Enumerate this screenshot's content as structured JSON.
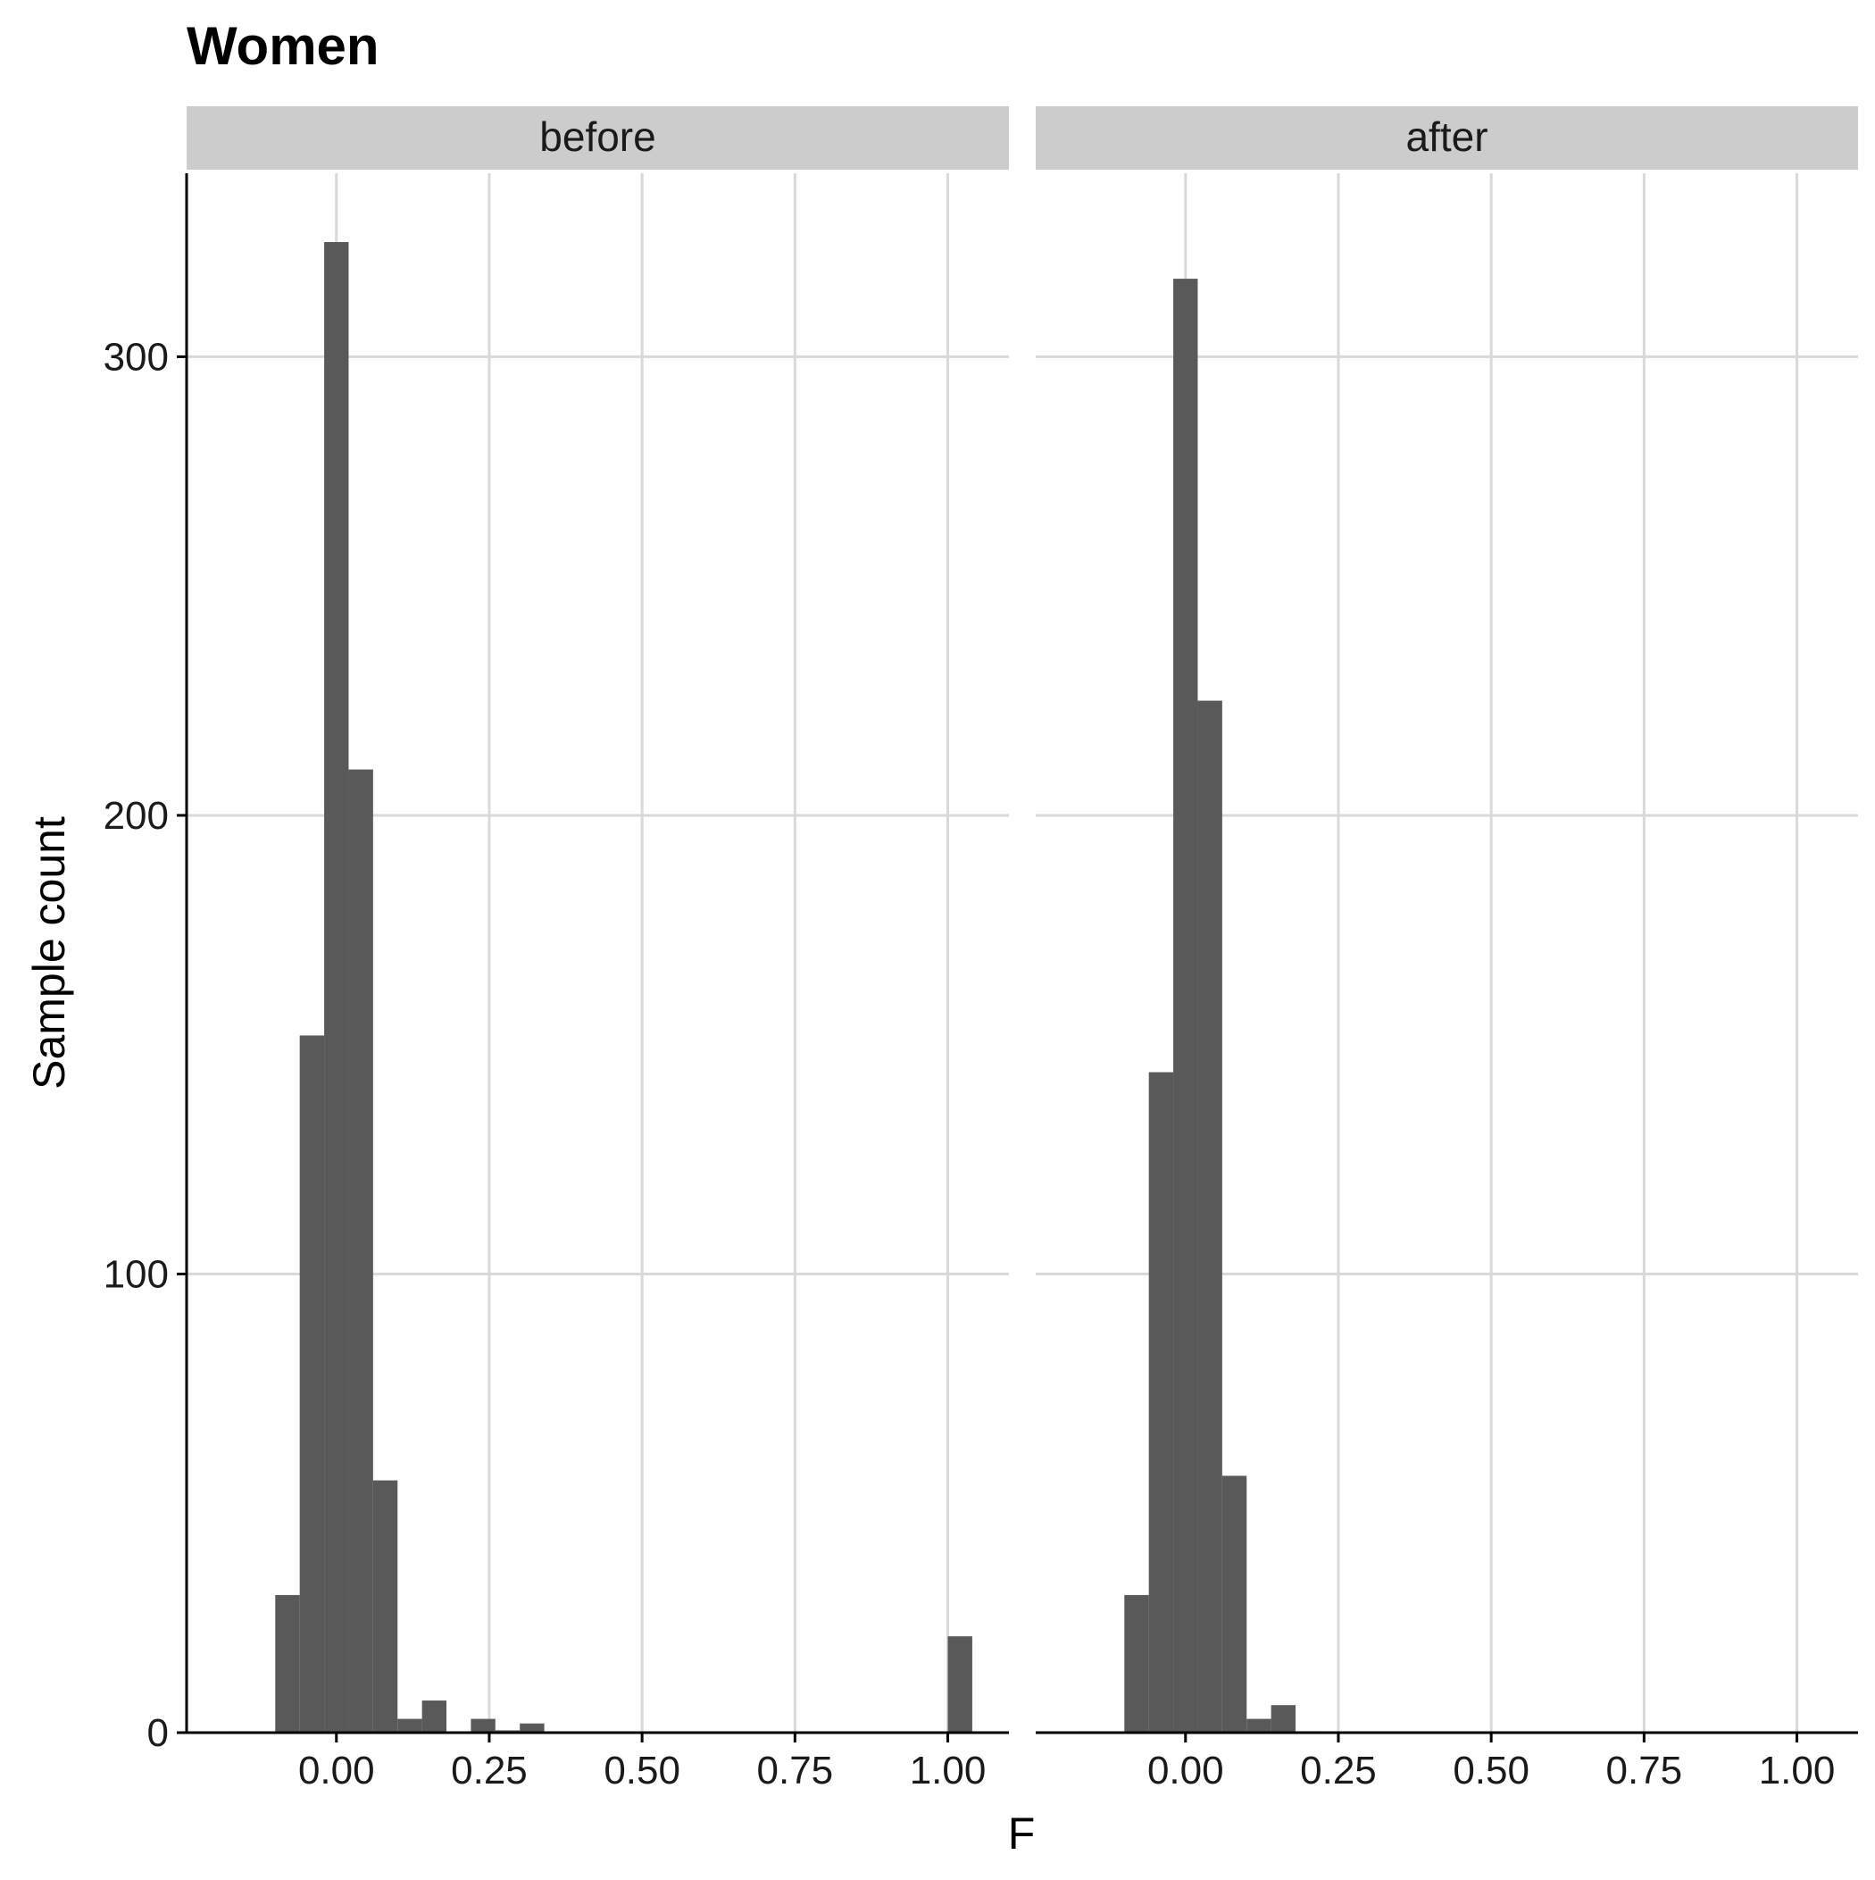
{
  "chart_data": {
    "type": "bar",
    "title": "Women",
    "xlabel": "F",
    "ylabel": "Sample count",
    "xlim": [
      -0.245,
      1.1
    ],
    "ylim": [
      0,
      340
    ],
    "xticks": [
      0.0,
      0.25,
      0.5,
      0.75,
      1.0
    ],
    "xtick_labels": [
      "0.00",
      "0.25",
      "0.50",
      "0.75",
      "1.00"
    ],
    "yticks": [
      0,
      100,
      200,
      300
    ],
    "ytick_labels": [
      "0",
      "100",
      "200",
      "300"
    ],
    "grid": true,
    "bar_color": "#595959",
    "grid_color": "#d9d9d9",
    "strip_color": "#cccccc",
    "bin_width": 0.04,
    "panels": [
      {
        "label": "before",
        "bins": [
          {
            "x0": -0.18,
            "x1": -0.14,
            "count": 0.3
          },
          {
            "x0": -0.1,
            "x1": -0.06,
            "count": 30
          },
          {
            "x0": -0.06,
            "x1": -0.02,
            "count": 152
          },
          {
            "x0": -0.02,
            "x1": 0.02,
            "count": 325
          },
          {
            "x0": 0.02,
            "x1": 0.06,
            "count": 210
          },
          {
            "x0": 0.06,
            "x1": 0.1,
            "count": 55
          },
          {
            "x0": 0.1,
            "x1": 0.14,
            "count": 3
          },
          {
            "x0": 0.14,
            "x1": 0.18,
            "count": 7
          },
          {
            "x0": 0.22,
            "x1": 0.26,
            "count": 3
          },
          {
            "x0": 0.26,
            "x1": 0.3,
            "count": 0.5
          },
          {
            "x0": 0.3,
            "x1": 0.34,
            "count": 2
          },
          {
            "x0": 1.0,
            "x1": 1.04,
            "count": 21
          }
        ]
      },
      {
        "label": "after",
        "bins": [
          {
            "x0": -0.18,
            "x1": -0.14,
            "count": 0.3
          },
          {
            "x0": -0.1,
            "x1": -0.06,
            "count": 30
          },
          {
            "x0": -0.06,
            "x1": -0.02,
            "count": 144
          },
          {
            "x0": -0.02,
            "x1": 0.02,
            "count": 317
          },
          {
            "x0": 0.02,
            "x1": 0.06,
            "count": 225
          },
          {
            "x0": 0.06,
            "x1": 0.1,
            "count": 56
          },
          {
            "x0": 0.1,
            "x1": 0.14,
            "count": 3
          },
          {
            "x0": 0.14,
            "x1": 0.18,
            "count": 6
          },
          {
            "x0": 0.18,
            "x1": 0.22,
            "count": 0.3
          }
        ]
      }
    ]
  }
}
